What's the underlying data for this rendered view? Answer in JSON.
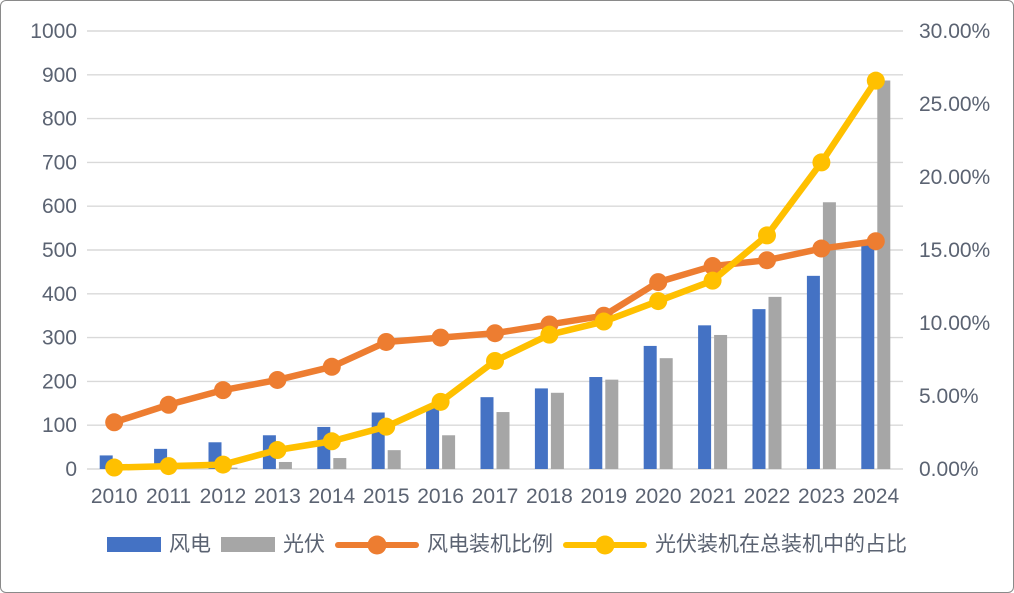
{
  "chart_data": {
    "type": "bar",
    "subtype": "combo-bar-line-dual-axis",
    "title": "",
    "categories": [
      "2010",
      "2011",
      "2012",
      "2013",
      "2014",
      "2015",
      "2016",
      "2017",
      "2018",
      "2019",
      "2020",
      "2021",
      "2022",
      "2023",
      "2024"
    ],
    "series": [
      {
        "name": "风电",
        "chart_type": "bar",
        "axis": "left",
        "color": "#4472C4",
        "values": [
          31,
          46,
          61,
          77,
          96,
          129,
          140,
          164,
          184,
          210,
          281,
          328,
          365,
          441,
          521
        ]
      },
      {
        "name": "光伏",
        "chart_type": "bar",
        "axis": "left",
        "color": "#A6A6A6",
        "values": [
          1,
          2,
          3,
          16,
          25,
          43,
          77,
          130,
          174,
          204,
          253,
          306,
          393,
          609,
          887
        ]
      },
      {
        "name": "风电装机比例",
        "chart_type": "line",
        "axis": "right",
        "color": "#ED7D31",
        "values": [
          3.2,
          4.4,
          5.4,
          6.1,
          7.0,
          8.7,
          9.0,
          9.3,
          9.9,
          10.5,
          12.8,
          13.9,
          14.3,
          15.1,
          15.6
        ]
      },
      {
        "name": "光伏装机在总装机中的占比",
        "chart_type": "line",
        "axis": "right",
        "color": "#FFC000",
        "values": [
          0.1,
          0.2,
          0.3,
          1.3,
          1.9,
          2.9,
          4.6,
          7.4,
          9.2,
          10.1,
          11.5,
          12.9,
          16.0,
          21.0,
          26.6
        ]
      }
    ],
    "left_axis": {
      "min": 0,
      "max": 1000,
      "step": 100,
      "tick_labels": [
        "1000",
        "900",
        "800",
        "700",
        "600",
        "500",
        "400",
        "300",
        "200",
        "100",
        "0"
      ]
    },
    "right_axis": {
      "min": 0,
      "max": 30,
      "step": 5,
      "tick_labels": [
        "30.00%",
        "25.00%",
        "20.00%",
        "15.00%",
        "10.00%",
        "5.00%",
        "0.00%"
      ]
    },
    "grid": true,
    "gridline_color": "#D9D9D9",
    "text_color": "#5b6372",
    "legend_position": "bottom"
  },
  "legend": {
    "items": [
      {
        "label": "风电",
        "color": "#4472C4",
        "marker": "bar"
      },
      {
        "label": "光伏",
        "color": "#A6A6A6",
        "marker": "bar"
      },
      {
        "label": "风电装机比例",
        "color": "#ED7D31",
        "marker": "line-dot"
      },
      {
        "label": "光伏装机在总装机中的占比",
        "color": "#FFC000",
        "marker": "line-dot"
      }
    ]
  }
}
